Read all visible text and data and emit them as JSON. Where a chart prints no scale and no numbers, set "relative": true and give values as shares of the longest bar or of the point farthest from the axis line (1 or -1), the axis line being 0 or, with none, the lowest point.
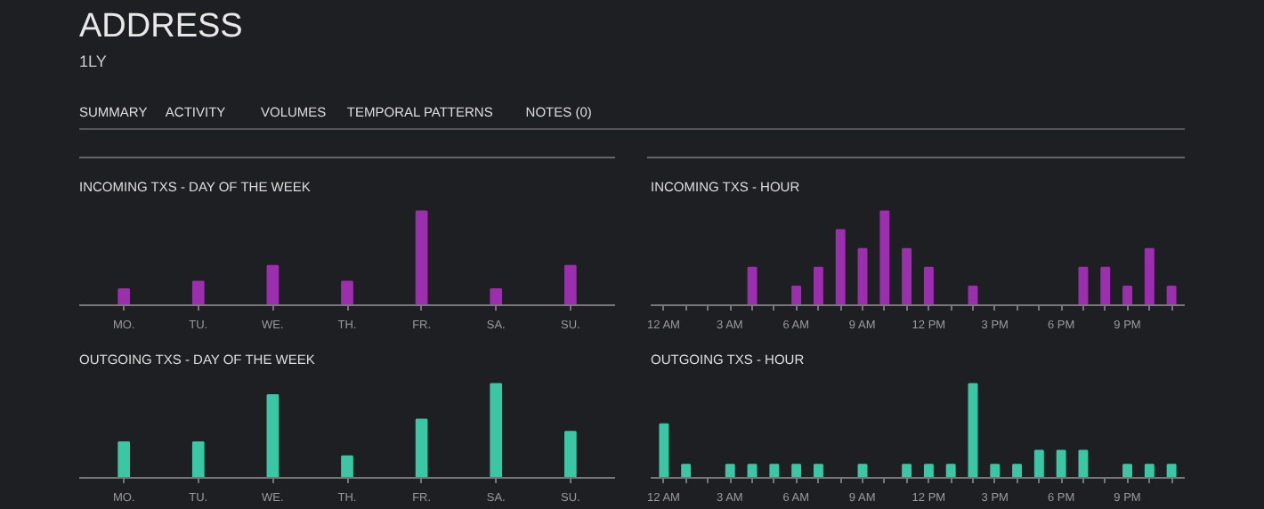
{
  "chart_data": [
    {
      "type": "other",
      "title": "ADDRESS",
      "subtitle": "1LY",
      "annotations": [
        "SUMMARY",
        "ACTIVITY",
        "VOLUMES",
        "TEMPORAL PATTERNS",
        "NOTES (0)"
      ]
    },
    {
      "type": "bar",
      "title": "INCOMING TXS - DAY OF THE WEEK",
      "relative": true,
      "color": "#9b2fae",
      "categories": [
        "MO.",
        "TU.",
        "WE.",
        "TH.",
        "FR.",
        "SA.",
        "SU."
      ],
      "values": [
        0.17,
        0.25,
        0.42,
        0.25,
        1,
        0.17,
        0.42
      ]
    },
    {
      "type": "bar",
      "title": "INCOMING TXS - HOUR",
      "relative": true,
      "color": "#9b2fae",
      "categories": [
        "12 AM",
        null,
        null,
        "3 AM",
        null,
        null,
        "6 AM",
        null,
        null,
        "9 AM",
        null,
        null,
        "12 PM",
        null,
        null,
        "3 PM",
        null,
        null,
        "6 PM",
        null,
        null,
        "9 PM",
        null,
        null
      ],
      "values": [
        0,
        0,
        0,
        0,
        0.4,
        0,
        0.2,
        0.4,
        0.8,
        0.6,
        1,
        0.6,
        0.4,
        0,
        0.2,
        0,
        0,
        0,
        0,
        0.4,
        0.4,
        0.2,
        0.6,
        0.2
      ]
    },
    {
      "type": "bar",
      "title": "OUTGOING TXS - DAY OF THE WEEK",
      "relative": true,
      "color": "#3cc7a4",
      "categories": [
        "MO.",
        "TU.",
        "WE.",
        "TH.",
        "FR.",
        "SA.",
        "SU."
      ],
      "values": [
        0.38,
        0.38,
        0.88,
        0.23,
        0.62,
        1,
        0.49
      ]
    },
    {
      "type": "bar",
      "title": "OUTGOING TXS - HOUR",
      "relative": true,
      "color": "#3cc7a4",
      "categories": [
        "12 AM",
        null,
        null,
        "3 AM",
        null,
        null,
        "6 AM",
        null,
        null,
        "9 AM",
        null,
        null,
        "12 PM",
        null,
        null,
        "3 PM",
        null,
        null,
        "6 PM",
        null,
        null,
        "9 PM",
        null,
        null
      ],
      "values": [
        0.57,
        0.14,
        0,
        0.14,
        0.14,
        0.14,
        0.14,
        0.14,
        0,
        0.14,
        0,
        0.14,
        0.14,
        0.14,
        1,
        0.14,
        0.14,
        0.29,
        0.29,
        0.29,
        0,
        0.14,
        0.14,
        0.14
      ]
    }
  ]
}
